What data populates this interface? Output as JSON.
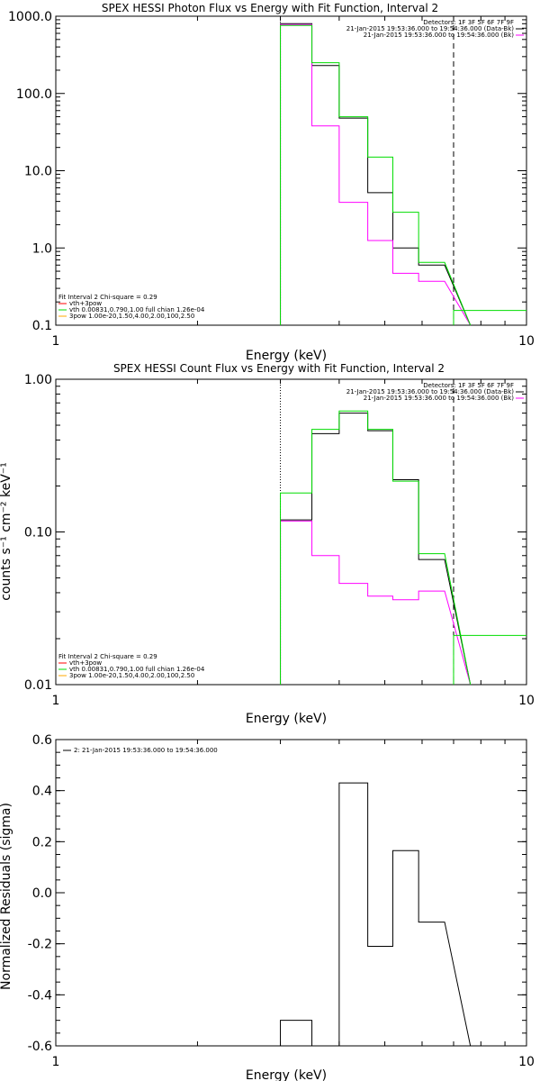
{
  "chart_data": [
    {
      "type": "line",
      "title": "SPEX HESSI Photon Flux vs Energy with Fit Function, Interval 2",
      "xlabel": "Energy (keV)",
      "ylabel": "",
      "xscale": "log",
      "yscale": "log",
      "xlim": [
        1,
        10
      ],
      "ylim": [
        0.1,
        1000
      ],
      "xticks": [
        "1",
        "10"
      ],
      "yticks": [
        "0.1",
        "1.0",
        "10.0",
        "100.0",
        "1000.0"
      ],
      "legend_top_right": [
        "Detectors: 1F 3F 5F 6F 7F 9F",
        "21-Jan-2015 19:53:36.000 to 19:54:36.000 (Data-Bk)",
        "21-Jan-2015 19:53:36.000 to 19:54:36.000 (Bk)"
      ],
      "legend_bottom_left": [
        "Fit Interval 2   Chi-square = 0.29",
        "vth+3pow",
        "vth 0.00831,0.790,1.00  full chian 1.26e-04",
        "3pow 1.00e-20,1.50,4.00,2.00,100,2.50"
      ],
      "edges": [
        3.0,
        3.5,
        4.0,
        4.6,
        5.2,
        5.9,
        6.7,
        7.6
      ],
      "series": [
        {
          "color": "#000000",
          "values": [
            800,
            230,
            48,
            5.2,
            1.0,
            0.6
          ]
        },
        {
          "color": "#ff00ff",
          "values": [
            780,
            38,
            3.9,
            1.25,
            0.47,
            0.37
          ]
        },
        {
          "color": "#00dd00",
          "values": [
            760,
            250,
            50,
            15,
            2.9,
            0.65
          ]
        }
      ],
      "green_extra": {
        "x": [
          7.0,
          10
        ],
        "value": 0.155
      },
      "dotted_x": 3.0,
      "dashed_x": 7.0
    },
    {
      "type": "line",
      "title": "SPEX HESSI Count Flux vs Energy with Fit Function, Interval 2",
      "xlabel": "Energy (keV)",
      "ylabel": "counts s⁻¹ cm⁻² keV⁻¹",
      "xscale": "log",
      "yscale": "log",
      "xlim": [
        1,
        10
      ],
      "ylim": [
        0.01,
        1.0
      ],
      "xticks": [
        "1",
        "10"
      ],
      "yticks": [
        "0.01",
        "0.10",
        "1.00"
      ],
      "legend_top_right": [
        "Detectors: 1F 3F 5F 6F 7F 9F",
        "21-Jan-2015 19:53:36.000 to 19:54:36.000 (Data-Bk)",
        "21-Jan-2015 19:53:36.000 to 19:54:36.000 (Bk)"
      ],
      "legend_bottom_left": [
        "Fit Interval 2   Chi-square = 0.29",
        "vth+3pow",
        "vth 0.00831,0.790,1.00  full chian 1.26e-04",
        "3pow 1.00e-20,1.50,4.00,2.00,100,2.50"
      ],
      "edges": [
        3.0,
        3.5,
        4.0,
        4.6,
        5.2,
        5.9,
        6.7,
        7.6
      ],
      "series": [
        {
          "color": "#000000",
          "values": [
            0.12,
            0.44,
            0.6,
            0.46,
            0.22,
            0.066
          ]
        },
        {
          "color": "#ff00ff",
          "values": [
            0.118,
            0.07,
            0.046,
            0.038,
            0.036,
            0.041
          ]
        },
        {
          "color": "#00dd00",
          "values": [
            0.18,
            0.47,
            0.62,
            0.47,
            0.215,
            0.072
          ]
        }
      ],
      "green_extra": {
        "x": [
          7.0,
          10
        ],
        "value": 0.021
      },
      "dotted_x": 3.0,
      "dashed_x": 7.0
    },
    {
      "type": "line",
      "title": "",
      "xlabel": "Energy (keV)",
      "ylabel": "Normalized Residuals (sigma)",
      "xscale": "log",
      "yscale": "linear",
      "xlim": [
        1,
        10
      ],
      "ylim": [
        -0.6,
        0.6
      ],
      "xticks": [
        "1",
        "10"
      ],
      "yticks": [
        "-0.6",
        "-0.4",
        "-0.2",
        "0.0",
        "0.2",
        "0.4",
        "0.6"
      ],
      "legend_top_left": [
        "2: 21-Jan-2015 19:53:36.000 to 19:54:36.000"
      ],
      "edges": [
        3.0,
        3.5,
        4.0,
        4.6,
        5.2,
        5.9,
        6.7,
        7.6
      ],
      "series": [
        {
          "color": "#000000",
          "values": [
            -0.5,
            -0.61,
            0.43,
            -0.21,
            0.165,
            -0.115
          ]
        }
      ]
    }
  ]
}
